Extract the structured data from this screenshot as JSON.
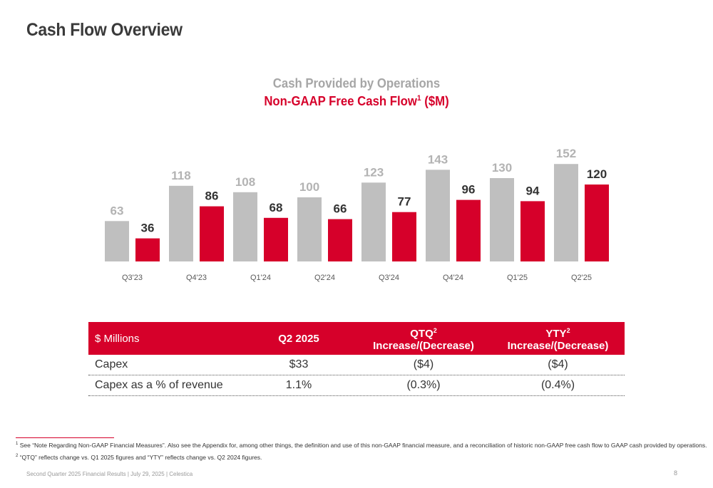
{
  "page": {
    "title": "Cash Flow Overview"
  },
  "chart_data": {
    "type": "bar",
    "title_line1": "Cash Provided by Operations",
    "title_line2": "Non-GAAP Free Cash Flow",
    "title_line2_sup": "1",
    "title_line2_suffix": " ($M)",
    "categories": [
      "Q3'23",
      "Q4'23",
      "Q1'24",
      "Q2'24",
      "Q3'24",
      "Q4'24",
      "Q1'25",
      "Q2'25"
    ],
    "series": [
      {
        "values": [
          63,
          118,
          108,
          100,
          123,
          143,
          130,
          152
        ],
        "color": "#bfbfbf",
        "label_color": "#b3b3b3"
      },
      {
        "values": [
          36,
          86,
          68,
          66,
          77,
          96,
          94,
          120
        ],
        "color": "#d6002a",
        "label_color": "#333333"
      }
    ],
    "ylim": [
      0,
      160
    ],
    "grid": false,
    "legend": "none"
  },
  "table": {
    "headers": {
      "c0": "$ Millions",
      "c1": "Q2 2025",
      "c2_main": "QTQ",
      "c2_sup": "2",
      "c2_sub": "Increase/(Decrease)",
      "c3_main": "YTY",
      "c3_sup": "2",
      "c3_sub": "Increase/(Decrease)"
    },
    "rows": [
      {
        "label": "Capex",
        "q2": "$33",
        "qtq": "($4)",
        "yty": "($4)"
      },
      {
        "label": "Capex as a % of revenue",
        "q2": "1.1%",
        "qtq": "(0.3%)",
        "yty": "(0.4%)"
      }
    ]
  },
  "footnotes": {
    "f1_sup": "1",
    "f1": " See “Note Regarding Non-GAAP Financial Measures”. Also see the Appendix for, among other things, the definition and use of this non-GAAP financial measure, and a reconciliation of historic non-GAAP free cash flow to GAAP cash provided by operations.",
    "f2_sup": "2",
    "f2": " “QTQ” reflects change vs. Q1 2025 figures and “YTY” reflects change vs. Q2 2024 figures."
  },
  "footer": {
    "text": "Second Quarter 2025 Financial Results | July 29, 2025 | Celestica",
    "page_number": "8"
  }
}
